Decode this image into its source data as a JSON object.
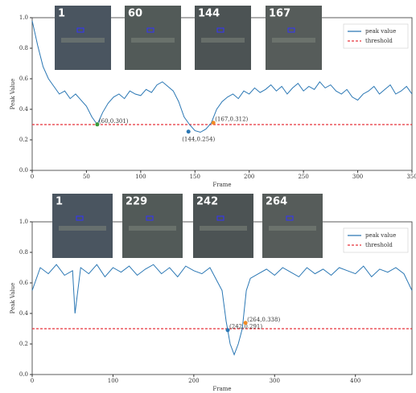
{
  "chart_data": [
    {
      "type": "line",
      "xlabel": "Frame",
      "ylabel": "Peak Value",
      "xlim": [
        0,
        350
      ],
      "ylim": [
        0,
        1
      ],
      "xticks": [
        0,
        50,
        100,
        150,
        200,
        250,
        300,
        350
      ],
      "yticks": [
        {
          "value": 0,
          "label": "0.0"
        },
        0.2,
        0.4,
        0.6,
        0.8,
        {
          "value": 1,
          "label": "1.0"
        }
      ],
      "thumbnails": [
        "1",
        "60",
        "144",
        "167"
      ],
      "series": [
        {
          "name": "peak value",
          "color": "#2a77b4",
          "x": [
            0,
            5,
            10,
            15,
            20,
            25,
            30,
            35,
            40,
            45,
            50,
            55,
            60,
            65,
            70,
            75,
            80,
            85,
            90,
            95,
            100,
            105,
            110,
            115,
            120,
            125,
            130,
            135,
            140,
            145,
            150,
            155,
            160,
            165,
            170,
            175,
            180,
            185,
            190,
            195,
            200,
            205,
            210,
            215,
            220,
            225,
            230,
            235,
            240,
            245,
            250,
            255,
            260,
            265,
            270,
            275,
            280,
            285,
            290,
            295,
            300,
            305,
            310,
            315,
            320,
            325,
            330,
            335,
            340,
            345,
            350
          ],
          "values": [
            0.98,
            0.82,
            0.68,
            0.6,
            0.55,
            0.5,
            0.52,
            0.47,
            0.5,
            0.46,
            0.42,
            0.35,
            0.3,
            0.38,
            0.44,
            0.48,
            0.5,
            0.47,
            0.52,
            0.5,
            0.49,
            0.53,
            0.51,
            0.56,
            0.58,
            0.55,
            0.52,
            0.45,
            0.35,
            0.3,
            0.26,
            0.25,
            0.27,
            0.31,
            0.4,
            0.45,
            0.48,
            0.5,
            0.47,
            0.52,
            0.5,
            0.54,
            0.51,
            0.53,
            0.56,
            0.52,
            0.55,
            0.5,
            0.54,
            0.57,
            0.52,
            0.55,
            0.53,
            0.58,
            0.54,
            0.56,
            0.52,
            0.5,
            0.53,
            0.48,
            0.46,
            0.5,
            0.52,
            0.55,
            0.5,
            0.53,
            0.56,
            0.5,
            0.52,
            0.55,
            0.5
          ]
        }
      ],
      "threshold": {
        "name": "threshold",
        "value": 0.3,
        "color": "#e8333a"
      },
      "annotations": [
        {
          "x": 60,
          "y": 0.301,
          "label": "(60,0.301)",
          "color": "#3a9a3a"
        },
        {
          "x": 144,
          "y": 0.254,
          "label": "(144,0.254)",
          "color": "#2a77b4"
        },
        {
          "x": 167,
          "y": 0.312,
          "label": "(167,0.312)",
          "color": "#f08a24"
        }
      ]
    },
    {
      "type": "line",
      "xlabel": "Frame",
      "ylabel": "Peak Value",
      "xlim": [
        0,
        470
      ],
      "ylim": [
        0,
        1
      ],
      "xticks": [
        0,
        100,
        200,
        300,
        400
      ],
      "yticks": [
        {
          "value": 0,
          "label": "0.0"
        },
        0.2,
        0.4,
        0.6,
        0.8,
        {
          "value": 1,
          "label": "1.0"
        }
      ],
      "thumbnails": [
        "1",
        "229",
        "242",
        "264"
      ],
      "series": [
        {
          "name": "peak value",
          "color": "#2a77b4",
          "x": [
            0,
            10,
            20,
            30,
            40,
            50,
            53,
            60,
            70,
            80,
            90,
            100,
            110,
            120,
            130,
            140,
            150,
            160,
            170,
            180,
            190,
            200,
            210,
            220,
            230,
            235,
            240,
            245,
            250,
            255,
            260,
            265,
            270,
            280,
            290,
            300,
            310,
            320,
            330,
            340,
            350,
            360,
            370,
            380,
            390,
            400,
            410,
            420,
            430,
            440,
            450,
            460,
            470
          ],
          "values": [
            0.55,
            0.7,
            0.66,
            0.72,
            0.65,
            0.68,
            0.4,
            0.7,
            0.66,
            0.72,
            0.64,
            0.7,
            0.67,
            0.71,
            0.65,
            0.69,
            0.72,
            0.66,
            0.7,
            0.64,
            0.71,
            0.68,
            0.66,
            0.7,
            0.6,
            0.55,
            0.35,
            0.2,
            0.13,
            0.2,
            0.3,
            0.55,
            0.63,
            0.66,
            0.69,
            0.65,
            0.7,
            0.67,
            0.64,
            0.7,
            0.66,
            0.69,
            0.65,
            0.7,
            0.68,
            0.66,
            0.71,
            0.64,
            0.69,
            0.67,
            0.7,
            0.66,
            0.55
          ]
        }
      ],
      "threshold": {
        "name": "threshold",
        "value": 0.3,
        "color": "#e8333a"
      },
      "annotations": [
        {
          "x": 242,
          "y": 0.291,
          "label": "(242,0.291)",
          "color": "#2a77b4"
        },
        {
          "x": 264,
          "y": 0.338,
          "label": "(264,0.338)",
          "color": "#f08a24"
        }
      ]
    }
  ]
}
